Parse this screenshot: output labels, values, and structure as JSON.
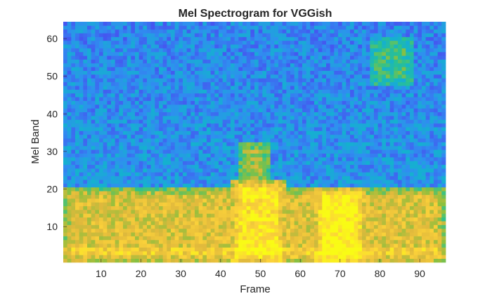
{
  "chart_data": {
    "type": "heatmap",
    "title": "Mel Spectrogram for VGGish",
    "xlabel": "Frame",
    "ylabel": "Mel Band",
    "x_range": [
      1,
      96
    ],
    "y_range": [
      1,
      64
    ],
    "x_ticks": [
      10,
      20,
      30,
      40,
      50,
      60,
      70,
      80,
      90
    ],
    "y_ticks": [
      10,
      20,
      30,
      40,
      50,
      60
    ],
    "colormap": "parula",
    "colors": [
      "#3e26a8",
      "#4653f0",
      "#2f8ff0",
      "#14b1cf",
      "#2bc18f",
      "#8fc03c",
      "#e0b93c",
      "#fcd23a",
      "#f9fb15"
    ],
    "grid": false,
    "legend": "none",
    "intensity_regions": [
      {
        "label": "low-band energy",
        "frames": [
          1,
          96
        ],
        "bands": [
          1,
          20
        ],
        "level": 0.55
      },
      {
        "label": "burst 1",
        "frames": [
          43,
          56
        ],
        "bands": [
          1,
          22
        ],
        "level": 0.75
      },
      {
        "label": "burst 1 upper",
        "frames": [
          45,
          52
        ],
        "bands": [
          22,
          32
        ],
        "level": 0.45
      },
      {
        "label": "burst 2",
        "frames": [
          64,
          76
        ],
        "bands": [
          1,
          20
        ],
        "level": 0.82
      },
      {
        "label": "faint high patch",
        "frames": [
          78,
          88
        ],
        "bands": [
          48,
          60
        ],
        "level": 0.3
      }
    ]
  }
}
